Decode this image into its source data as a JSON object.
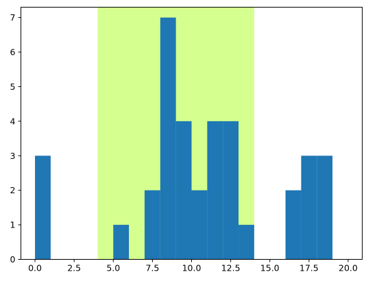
{
  "chart_data": {
    "type": "bar",
    "bins": [
      {
        "start": 0,
        "end": 1,
        "count": 3
      },
      {
        "start": 1,
        "end": 2,
        "count": 0
      },
      {
        "start": 2,
        "end": 3,
        "count": 0
      },
      {
        "start": 3,
        "end": 4,
        "count": 0
      },
      {
        "start": 4,
        "end": 5,
        "count": 0
      },
      {
        "start": 5,
        "end": 6,
        "count": 1
      },
      {
        "start": 6,
        "end": 7,
        "count": 0
      },
      {
        "start": 7,
        "end": 8,
        "count": 2
      },
      {
        "start": 8,
        "end": 9,
        "count": 7
      },
      {
        "start": 9,
        "end": 10,
        "count": 4
      },
      {
        "start": 10,
        "end": 11,
        "count": 2
      },
      {
        "start": 11,
        "end": 12,
        "count": 4
      },
      {
        "start": 12,
        "end": 13,
        "count": 4
      },
      {
        "start": 13,
        "end": 14,
        "count": 1
      },
      {
        "start": 14,
        "end": 15,
        "count": 0
      },
      {
        "start": 15,
        "end": 16,
        "count": 0
      },
      {
        "start": 16,
        "end": 17,
        "count": 2
      },
      {
        "start": 17,
        "end": 18,
        "count": 3
      },
      {
        "start": 18,
        "end": 19,
        "count": 3
      },
      {
        "start": 19,
        "end": 20,
        "count": 0
      }
    ],
    "highlight_span": {
      "start": 4,
      "end": 14,
      "color": "#d5ff8f"
    },
    "bar_color": "#1f77b4",
    "xlim": [
      -0.9,
      20.9
    ],
    "ylim": [
      0,
      7.3
    ],
    "xticks": [
      0.0,
      2.5,
      5.0,
      7.5,
      10.0,
      12.5,
      15.0,
      17.5,
      20.0
    ],
    "xtick_labels": [
      "0.0",
      "2.5",
      "5.0",
      "7.5",
      "10.0",
      "12.5",
      "15.0",
      "17.5",
      "20.0"
    ],
    "yticks": [
      0,
      1,
      2,
      3,
      4,
      5,
      6,
      7
    ],
    "ytick_labels": [
      "0",
      "1",
      "2",
      "3",
      "4",
      "5",
      "6",
      "7"
    ],
    "title": "",
    "xlabel": "",
    "ylabel": "",
    "grid": false
  }
}
